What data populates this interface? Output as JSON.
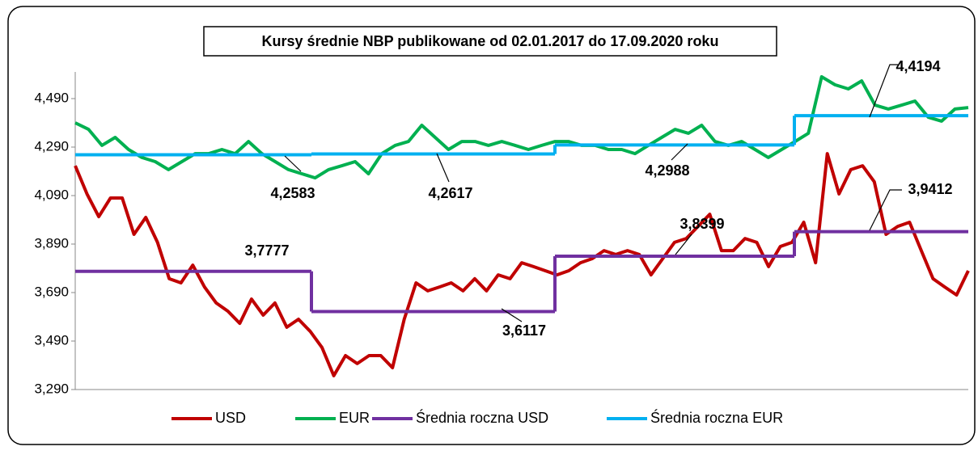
{
  "chart_data": {
    "type": "line",
    "title": "Kursy średnie NBP publikowane od 02.01.2017 do 17.09.2020 roku",
    "ylim": [
      3.29,
      4.6
    ],
    "yticks": [
      {
        "value": 3.29,
        "label": "3,290"
      },
      {
        "value": 3.49,
        "label": "3,490"
      },
      {
        "value": 3.69,
        "label": "3,690"
      },
      {
        "value": 3.89,
        "label": "3,890"
      },
      {
        "value": 4.09,
        "label": "4,090"
      },
      {
        "value": 4.29,
        "label": "4,290"
      },
      {
        "value": 4.49,
        "label": "4,490"
      }
    ],
    "legend": "bottom",
    "series": [
      {
        "name": "USD",
        "color": "#c00000",
        "values": [
          4.213,
          4.097,
          4.003,
          4.08,
          4.08,
          3.93,
          4.0,
          3.897,
          3.747,
          3.73,
          3.803,
          3.713,
          3.647,
          3.613,
          3.563,
          3.663,
          3.597,
          3.647,
          3.547,
          3.58,
          3.53,
          3.463,
          3.347,
          3.43,
          3.397,
          3.43,
          3.43,
          3.38,
          3.58,
          3.73,
          3.697,
          3.713,
          3.73,
          3.697,
          3.747,
          3.697,
          3.763,
          3.747,
          3.813,
          3.797,
          3.78,
          3.763,
          3.78,
          3.813,
          3.83,
          3.863,
          3.847,
          3.863,
          3.847,
          3.763,
          3.83,
          3.897,
          3.913,
          3.963,
          4.013,
          3.863,
          3.863,
          3.913,
          3.897,
          3.797,
          3.88,
          3.897,
          3.98,
          3.813,
          4.263,
          4.097,
          4.197,
          4.213,
          4.147,
          3.93,
          3.963,
          3.98,
          3.863,
          3.747,
          3.713,
          3.68,
          3.78
        ]
      },
      {
        "name": "EUR",
        "color": "#00b050",
        "values": [
          4.39,
          4.363,
          4.297,
          4.33,
          4.28,
          4.247,
          4.23,
          4.197,
          4.23,
          4.263,
          4.263,
          4.28,
          4.263,
          4.313,
          4.263,
          4.23,
          4.197,
          4.18,
          4.163,
          4.197,
          4.213,
          4.23,
          4.18,
          4.263,
          4.297,
          4.313,
          4.38,
          4.33,
          4.28,
          4.313,
          4.313,
          4.297,
          4.313,
          4.297,
          4.28,
          4.297,
          4.313,
          4.313,
          4.297,
          4.297,
          4.28,
          4.28,
          4.263,
          4.297,
          4.33,
          4.363,
          4.347,
          4.38,
          4.313,
          4.297,
          4.313,
          4.28,
          4.247,
          4.28,
          4.313,
          4.347,
          4.58,
          4.547,
          4.53,
          4.563,
          4.463,
          4.447,
          4.463,
          4.48,
          4.413,
          4.397,
          4.447,
          4.453
        ]
      },
      {
        "name": "Średnia roczna USD",
        "color": "#7030a0",
        "values": [
          3.7777,
          3.6117,
          3.8399,
          3.9412
        ],
        "value_labels": [
          "3,7777",
          "3,6117",
          "3,8399",
          "3,9412"
        ]
      },
      {
        "name": "Średnia roczna EUR",
        "color": "#00b0f0",
        "values": [
          4.2583,
          4.2617,
          4.2988,
          4.4194
        ],
        "value_labels": [
          "4,2583",
          "4,2617",
          "4,2988",
          "4,4194"
        ]
      }
    ]
  }
}
